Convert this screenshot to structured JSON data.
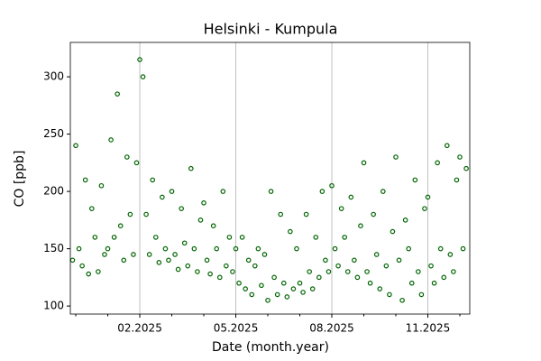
{
  "chart_data": {
    "type": "scatter",
    "title": "Helsinki - Kumpula",
    "x_label": "Date (month.year)",
    "y_label": "CO [ppb]",
    "xlim": [
      -0.17,
      12.31
    ],
    "xticks": [
      {
        "value": 2,
        "label": "02.2025"
      },
      {
        "value": 5,
        "label": "05.2025"
      },
      {
        "value": 8,
        "label": "08.2025"
      },
      {
        "value": 11,
        "label": "11.2025"
      }
    ],
    "xminor_ticks": [
      0,
      1,
      3,
      4,
      6,
      7,
      9,
      10,
      12
    ],
    "ylim": [
      93,
      330
    ],
    "yticks": [
      100,
      150,
      200,
      250,
      300
    ],
    "grid": "x",
    "series": [
      {
        "color": "#006400",
        "x": [
          -0.1,
          0.0,
          0.1,
          0.2,
          0.3,
          0.4,
          0.5,
          0.6,
          0.7,
          0.8,
          0.9,
          1.0,
          1.1,
          1.2,
          1.3,
          1.4,
          1.5,
          1.6,
          1.7,
          1.8,
          1.9,
          2.0,
          2.1,
          2.2,
          2.3,
          2.4,
          2.5,
          2.6,
          2.7,
          2.8,
          2.9,
          3.0,
          3.1,
          3.2,
          3.3,
          3.4,
          3.5,
          3.6,
          3.7,
          3.8,
          3.9,
          4.0,
          4.1,
          4.2,
          4.3,
          4.4,
          4.5,
          4.6,
          4.7,
          4.8,
          4.9,
          5.0,
          5.1,
          5.2,
          5.3,
          5.4,
          5.5,
          5.6,
          5.7,
          5.8,
          5.9,
          6.0,
          6.1,
          6.2,
          6.3,
          6.4,
          6.5,
          6.6,
          6.7,
          6.8,
          6.9,
          7.0,
          7.1,
          7.2,
          7.3,
          7.4,
          7.5,
          7.6,
          7.7,
          7.8,
          7.9,
          8.0,
          8.1,
          8.2,
          8.3,
          8.4,
          8.5,
          8.6,
          8.7,
          8.8,
          8.9,
          9.0,
          9.1,
          9.2,
          9.3,
          9.4,
          9.5,
          9.6,
          9.7,
          9.8,
          9.9,
          10.0,
          10.1,
          10.2,
          10.3,
          10.4,
          10.5,
          10.6,
          10.7,
          10.8,
          10.9,
          11.0,
          11.1,
          11.2,
          11.3,
          11.4,
          11.5,
          11.6,
          11.7,
          11.8,
          11.9,
          12.0,
          12.1,
          12.2
        ],
        "values": [
          140,
          240,
          150,
          135,
          210,
          128,
          185,
          160,
          130,
          205,
          145,
          150,
          245,
          160,
          285,
          170,
          140,
          230,
          180,
          145,
          225,
          315,
          300,
          180,
          145,
          210,
          160,
          138,
          195,
          150,
          140,
          200,
          145,
          132,
          185,
          155,
          135,
          220,
          150,
          130,
          175,
          190,
          140,
          128,
          170,
          150,
          125,
          200,
          135,
          160,
          130,
          150,
          120,
          160,
          115,
          140,
          110,
          135,
          150,
          118,
          145,
          105,
          200,
          125,
          110,
          180,
          120,
          108,
          165,
          115,
          150,
          120,
          112,
          180,
          130,
          115,
          160,
          125,
          200,
          140,
          130,
          205,
          150,
          135,
          185,
          160,
          130,
          195,
          140,
          125,
          170,
          225,
          130,
          120,
          180,
          145,
          115,
          200,
          135,
          110,
          165,
          230,
          140,
          105,
          175,
          150,
          120,
          210,
          130,
          110,
          185,
          195,
          135,
          120,
          225,
          150,
          125,
          240,
          145,
          130,
          210,
          230,
          150,
          220
        ]
      }
    ]
  }
}
